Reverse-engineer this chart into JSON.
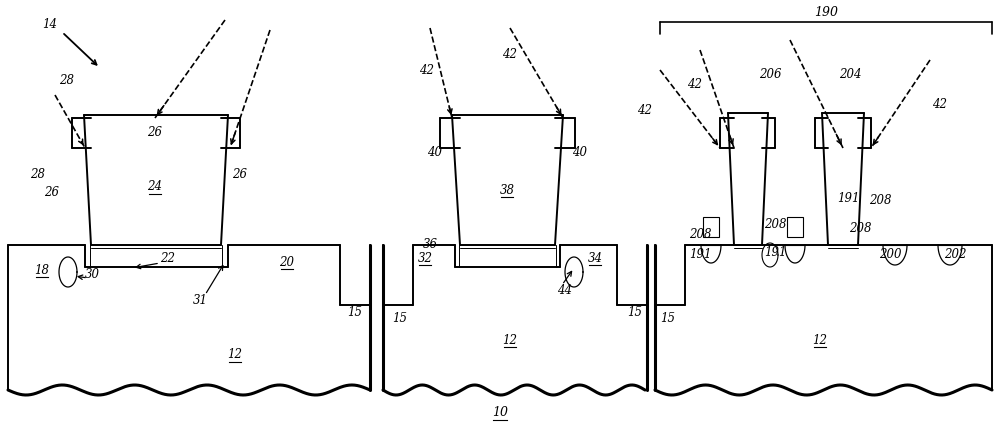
{
  "bg": "#ffffff",
  "lc": "#000000",
  "fig_w": 10.0,
  "fig_h": 4.23,
  "lw_main": 1.4,
  "lw_thick": 2.2,
  "lw_thin": 0.7,
  "fs": 8.5
}
